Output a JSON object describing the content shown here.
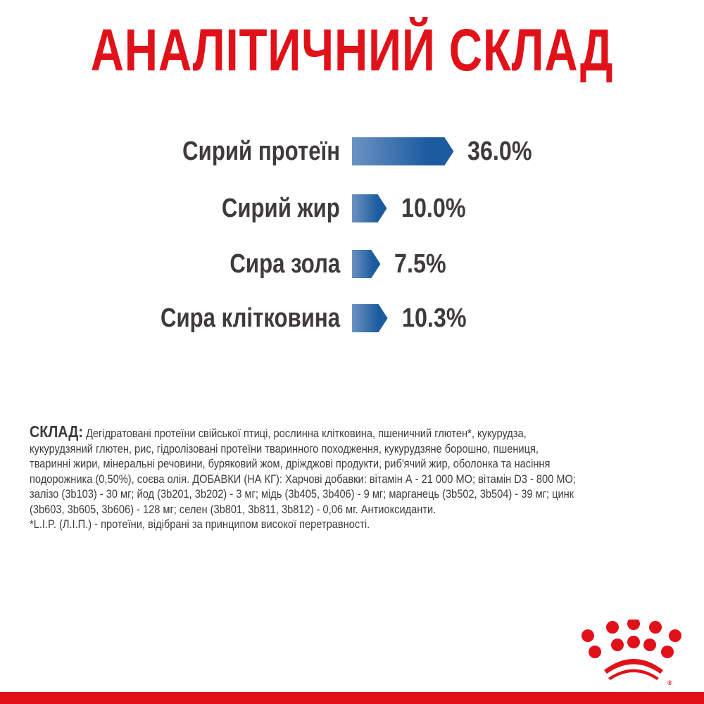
{
  "title": "АНАЛІТИЧНИЙ СКЛАД",
  "colors": {
    "brand_red": "#e1111a",
    "bar_blue_dark": "#1b5b9f",
    "bar_blue_light": "#6c93c2",
    "text_dark": "#3f3b3b"
  },
  "chart_data": {
    "type": "bar",
    "orientation": "horizontal",
    "title": "АНАЛІТИЧНИЙ СКЛАД",
    "categories": [
      "Сирий протеїн",
      "Сирий жир",
      "Сира зола",
      "Сира клітковина"
    ],
    "values": [
      36.0,
      10.0,
      7.5,
      10.3
    ],
    "value_labels": [
      "36.0%",
      "10.0%",
      "7.5%",
      "10.3%"
    ],
    "unit": "%",
    "xlabel": "",
    "ylabel": "",
    "grid": false,
    "legend": null
  },
  "composition": {
    "lead": "СКЛАД:",
    "lines": [
      " Дегідратовані протеїни свійської птиці, рослинна клітковина, пшеничний глютен*, кукурудза,",
      "кукурудзяний глютен, рис, гідролізовані протеїни тваринного походження, кукурудзяне борошно, пшениця,",
      "тваринні жири, мінеральні речовини, буряковий жом, дріжджові продукти, риб'ячий жир, оболонка та насіння",
      "подорожника (0,50%), соєва олія. ДОБАВКИ (НА КГ): Харчові добавки: вітамін А - 21 000 МО; вітамін D3 - 800 МО;",
      "залізо (3b103) - 30 мг; йод (3b201, 3b202) - 3 мг; мідь (3b405, 3b406) - 9 мг; марганець (3b502, 3b504) - 39 мг; цинк",
      "(3b603, 3b605, 3b606) - 128 мг; селен (3b801, 3b811, 3b812) - 0,06 мг. Антиоксиданти.",
      "*L.I.P. (Л.І.П.) - протеїни, відібрані за принципом високої перетравності."
    ]
  },
  "logo": {
    "icon": "crown-icon",
    "mark": "®"
  }
}
